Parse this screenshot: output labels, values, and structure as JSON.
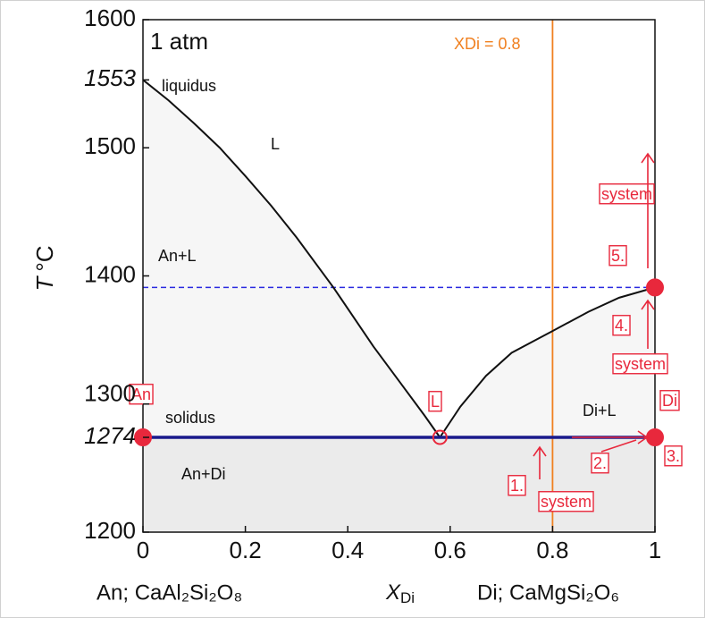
{
  "chart_data": {
    "type": "phase_diagram",
    "title": "1 atm",
    "y_label": {
      "symbol": "T",
      "unit": "°C"
    },
    "x_label_left": "An; CaAl₂Si₂O₈",
    "x_symbol": {
      "symbol": "X",
      "sub": "Di"
    },
    "x_label_right": "Di; CaMgSi₂O₆",
    "xlim": [
      0,
      1
    ],
    "xticks": [
      0,
      {
        "value": 0.2,
        "label": "0.2"
      },
      {
        "value": 0.4,
        "label": "0.4"
      },
      {
        "value": 0.6,
        "label": "0.6"
      },
      {
        "value": 0.8,
        "label": "0.8"
      },
      1
    ],
    "ylim": [
      1200,
      1600
    ],
    "yticks": [
      1200,
      1300,
      1400,
      1500,
      1600
    ],
    "marked_temperatures": [
      1553,
      1274
    ],
    "liquidus_label": "liquidus",
    "solidus_label": "solidus",
    "liquidus_an": {
      "x": [
        0,
        0.05,
        0.1,
        0.15,
        0.2,
        0.25,
        0.3,
        0.372,
        0.45,
        0.5,
        0.55,
        0.58
      ],
      "y": [
        1553,
        1537,
        1519,
        1500,
        1478,
        1455,
        1430,
        1391,
        1345,
        1318,
        1291,
        1274
      ]
    },
    "liquidus_di": {
      "x": [
        0.58,
        0.62,
        0.67,
        0.72,
        0.8,
        0.87,
        0.93,
        1
      ],
      "y": [
        1274,
        1298,
        1322,
        1340,
        1357,
        1372,
        1383,
        1391
      ]
    },
    "solidus_temperature": 1274,
    "solidus_color": "#1a1a8c",
    "dashed_temperature": 1391,
    "dashed_color": "#2a2ae0",
    "composition_line": {
      "x": 0.8,
      "label": "XDi = 0.8",
      "color": "#f08020"
    },
    "regions": [
      "L",
      "An+L",
      "Di+L",
      "An+Di"
    ],
    "points": [
      {
        "label": "An",
        "x": 0,
        "y": 1274,
        "filled": true
      },
      {
        "label": "L",
        "x": 0.58,
        "y": 1274,
        "filled": false
      },
      {
        "label": "Di",
        "x": 1,
        "y": 1274,
        "filled": true
      },
      {
        "x": 1,
        "y": 1391,
        "filled": true
      }
    ],
    "point_color": "#e8283c",
    "steps": [
      "1.",
      "2.",
      "3.",
      "4.",
      "5."
    ],
    "system_labels": [
      "system",
      "system",
      "system"
    ]
  }
}
